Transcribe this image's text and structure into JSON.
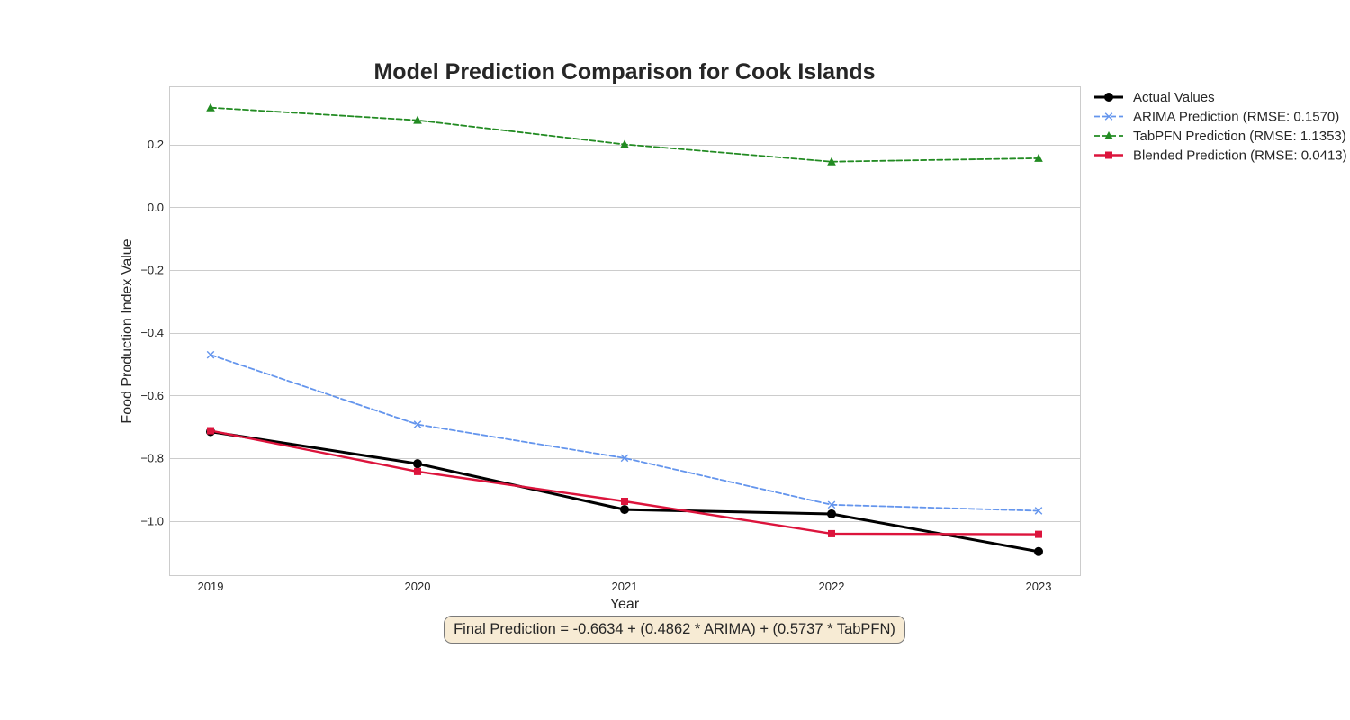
{
  "chart_data": {
    "type": "line",
    "title": "Model Prediction Comparison for Cook Islands",
    "xlabel": "Year",
    "ylabel": "Food Production Index Value",
    "x": [
      2019,
      2020,
      2021,
      2022,
      2023
    ],
    "xlim": [
      2018.8,
      2023.2
    ],
    "ylim": [
      -1.175,
      0.385
    ],
    "yticks": [
      -1.0,
      -0.8,
      -0.6,
      -0.4,
      -0.2,
      0.0,
      0.2
    ],
    "ytick_labels": [
      "−1.0",
      "−0.8",
      "−0.6",
      "−0.4",
      "−0.2",
      "0.0",
      "0.2"
    ],
    "grid": true,
    "legend_position": "outside-top-right",
    "series": [
      {
        "name": "Actual Values",
        "values": [
          -0.715,
          -0.817,
          -0.963,
          -0.977,
          -1.097
        ],
        "color": "#000000",
        "line_style": "solid",
        "marker": "circle"
      },
      {
        "name": "ARIMA Prediction (RMSE: 0.1570)",
        "values": [
          -0.47,
          -0.692,
          -0.799,
          -0.948,
          -0.967
        ],
        "color": "#6495ed",
        "line_style": "dashed",
        "marker": "x"
      },
      {
        "name": "TabPFN Prediction (RMSE: 1.1353)",
        "values": [
          0.317,
          0.277,
          0.2,
          0.145,
          0.156
        ],
        "color": "#228b22",
        "line_style": "dashed",
        "marker": "triangle"
      },
      {
        "name": "Blended Prediction (RMSE: 0.0413)",
        "values": [
          -0.712,
          -0.842,
          -0.937,
          -1.04,
          -1.042
        ],
        "color": "#dc143c",
        "line_style": "solid",
        "marker": "square"
      }
    ],
    "annotation": "Final Prediction = -0.6634 + (0.4862 * ARIMA) + (0.5737 * TabPFN)"
  }
}
